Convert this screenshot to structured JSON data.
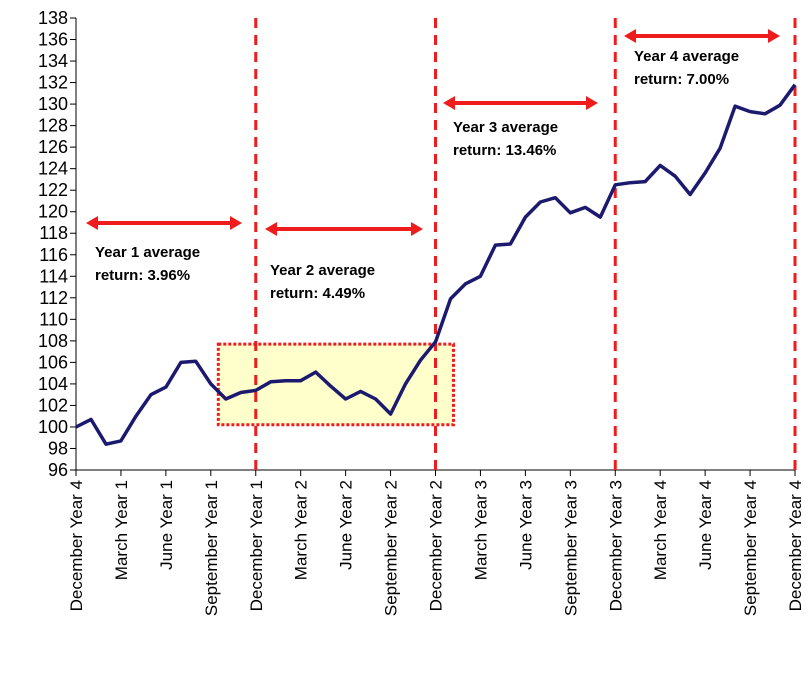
{
  "chart_data": {
    "type": "line",
    "title": "",
    "xlabel": "",
    "ylabel": "",
    "ylim": [
      96,
      138
    ],
    "yticks": [
      96,
      98,
      100,
      102,
      104,
      106,
      108,
      110,
      112,
      114,
      116,
      118,
      120,
      122,
      124,
      126,
      128,
      130,
      132,
      134,
      136,
      138
    ],
    "xtick_labels": [
      "December Year 4",
      "March Year 1",
      "June Year 1",
      "September Year 1",
      "December Year 1",
      "March Year 2",
      "June Year 2",
      "September Year 2",
      "December Year 2",
      "March Year 3",
      "June Year 3",
      "September Year 3",
      "December Year 3",
      "March Year 4",
      "June Year 4",
      "September Year 4",
      "December Year 4"
    ],
    "series": [
      {
        "values": [
          100.0,
          100.7,
          98.4,
          98.7,
          101.0,
          103.0,
          103.7,
          106.0,
          106.1,
          104.0,
          102.6,
          103.2,
          103.4,
          104.2,
          104.3,
          104.3,
          105.1,
          103.8,
          102.6,
          103.3,
          102.6,
          101.2,
          104.0,
          106.2,
          107.9,
          111.9,
          113.3,
          114.0,
          116.9,
          117.0,
          119.5,
          120.9,
          121.3,
          119.9,
          120.4,
          119.5,
          122.5,
          122.7,
          122.8,
          124.3,
          123.3,
          121.6,
          123.6,
          125.9,
          129.8,
          129.3,
          129.1,
          129.9,
          131.8
        ],
        "color": "#1c1a6e"
      }
    ],
    "grid": false,
    "legend": "none",
    "period_dividers_at_tick": [
      4,
      8,
      12,
      16
    ],
    "annotations": [
      {
        "text_line1": "Year 1 average",
        "text_line2": "return: 3.96%"
      },
      {
        "text_line1": "Year 2 average",
        "text_line2": "return: 4.49%"
      },
      {
        "text_line1": "Year 3 average",
        "text_line2": "return: 13.46%"
      },
      {
        "text_line1": "Year 4 average",
        "text_line2": "return: 7.00%"
      }
    ],
    "highlight_box": {
      "x_from_month": 9.5,
      "x_to_month": 25.2,
      "y_from": 100.2,
      "y_to": 107.7
    },
    "colors": {
      "divider": "#ee1c1c",
      "arrow": "#ee1c1c",
      "highlight_fill": "#ffffcc",
      "highlight_border": "#ee1c1c",
      "axis": "#000000"
    }
  }
}
